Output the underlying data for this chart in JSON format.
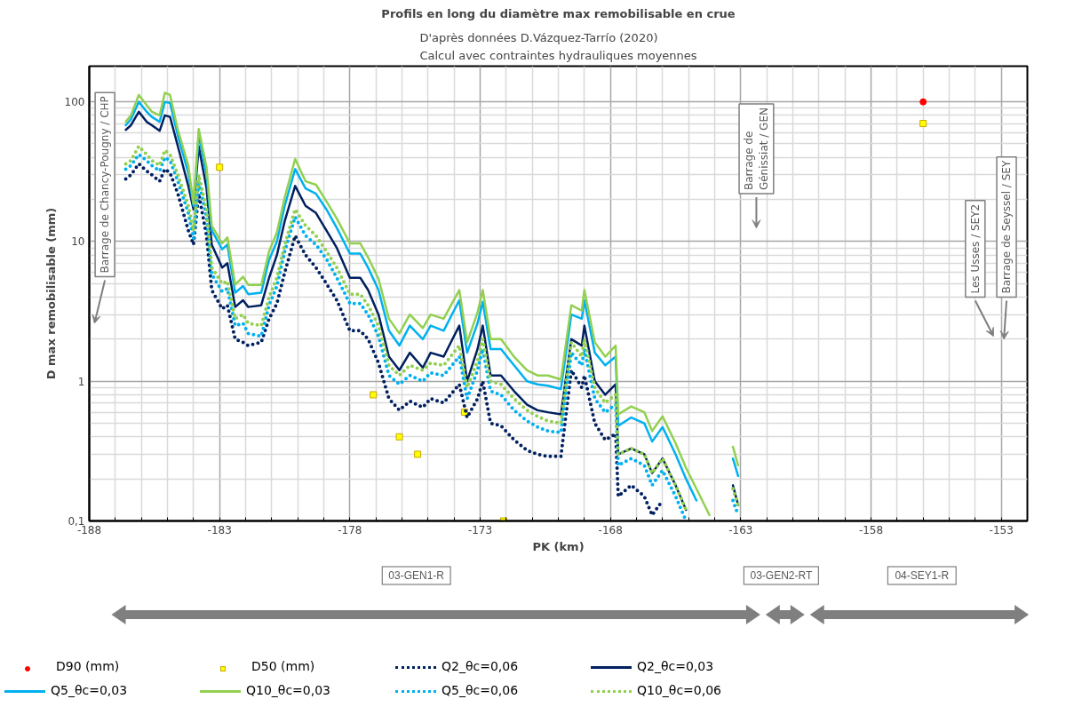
{
  "chart_data": {
    "type": "line",
    "title": "Profils en long du diamètre max remobilisable en crue",
    "subtitle": "D'après données D.Vázquez-Tarrío (2020)\nCalcul avec contraintes hydrauliques moyennes",
    "xlabel": "PK (km)",
    "ylabel": "D max remobilisable (mm)",
    "log": "y",
    "grid": true,
    "legend": "bottom",
    "xlim": [
      -188,
      -152
    ],
    "ylim": [
      0.1,
      180
    ],
    "xticks": [
      -188,
      {
        "value": -187,
        "label": null
      },
      {
        "value": -186,
        "label": null
      },
      {
        "value": -185,
        "label": null
      },
      {
        "value": -184,
        "label": null
      },
      -183,
      {
        "value": -182,
        "label": null
      },
      {
        "value": -181,
        "label": null
      },
      {
        "value": -180,
        "label": null
      },
      {
        "value": -179,
        "label": null
      },
      -178,
      {
        "value": -177,
        "label": null
      },
      {
        "value": -176,
        "label": null
      },
      {
        "value": -175,
        "label": null
      },
      {
        "value": -174,
        "label": null
      },
      -173,
      {
        "value": -172,
        "label": null
      },
      {
        "value": -171,
        "label": null
      },
      {
        "value": -170,
        "label": null
      },
      {
        "value": -169,
        "label": null
      },
      -168,
      {
        "value": -167,
        "label": null
      },
      {
        "value": -166,
        "label": null
      },
      {
        "value": -165,
        "label": null
      },
      {
        "value": -164,
        "label": null
      },
      -163,
      {
        "value": -162,
        "label": null
      },
      {
        "value": -161,
        "label": null
      },
      {
        "value": -160,
        "label": null
      },
      {
        "value": -159,
        "label": null
      },
      -158,
      {
        "value": -157,
        "label": null
      },
      {
        "value": -156,
        "label": null
      },
      {
        "value": -155,
        "label": null
      },
      {
        "value": -154,
        "label": null
      },
      -153
    ],
    "yticks": [
      {
        "value": 0.1,
        "label": "0,1"
      },
      {
        "value": 0.2,
        "label": null
      },
      {
        "value": 0.3,
        "label": null
      },
      {
        "value": 0.4,
        "label": null
      },
      {
        "value": 0.5,
        "label": null
      },
      {
        "value": 0.6,
        "label": null
      },
      {
        "value": 0.7,
        "label": null
      },
      {
        "value": 0.8,
        "label": null
      },
      {
        "value": 0.9,
        "label": null
      },
      1,
      {
        "value": 2,
        "label": null
      },
      {
        "value": 3,
        "label": null
      },
      {
        "value": 4,
        "label": null
      },
      {
        "value": 5,
        "label": null
      },
      {
        "value": 6,
        "label": null
      },
      {
        "value": 7,
        "label": null
      },
      {
        "value": 8,
        "label": null
      },
      {
        "value": 9,
        "label": null
      },
      10,
      {
        "value": 20,
        "label": null
      },
      {
        "value": 30,
        "label": null
      },
      {
        "value": 40,
        "label": null
      },
      {
        "value": 50,
        "label": null
      },
      {
        "value": 60,
        "label": null
      },
      {
        "value": 70,
        "label": null
      },
      {
        "value": 80,
        "label": null
      },
      {
        "value": 90,
        "label": null
      },
      100
    ],
    "x": [
      -186.6,
      -186.4,
      -186.1,
      -185.8,
      -185.6,
      -185.3,
      -185.1,
      -184.9,
      -184.6,
      -184.2,
      -184.0,
      -183.8,
      -183.5,
      -183.3,
      -182.9,
      -182.7,
      -182.4,
      -182.1,
      -181.9,
      -181.4,
      -181.1,
      -180.8,
      -180.5,
      -180.1,
      -179.7,
      -179.3,
      -178.9,
      -178.5,
      -178.0,
      -177.6,
      -177.3,
      -176.9,
      -176.5,
      -176.1,
      -175.7,
      -175.2,
      -174.9,
      -174.4,
      -173.8,
      -173.5,
      -173.1,
      -172.9,
      -172.6,
      -172.2,
      -171.7,
      -171.2,
      -170.8,
      -170.4,
      -169.9,
      -169.5,
      -169.1,
      -169.0,
      -168.6,
      -168.2,
      -167.8,
      -167.7,
      -167.2,
      -166.7,
      -166.4,
      -166.0,
      -165.5,
      -165.1,
      -164.7,
      -164.2,
      -163.8,
      -163.3,
      -163.1
    ],
    "series": [
      {
        "name": "D90 (mm)",
        "type": "scatter",
        "marker": "circle",
        "color": "#ff0000",
        "x": [
          -156.0
        ],
        "values": [
          100
        ]
      },
      {
        "name": "D50 (mm)",
        "type": "scatter",
        "marker": "square",
        "color": "#ffff00",
        "x": [
          -183.0,
          -177.1,
          -176.1,
          -175.4,
          -173.6,
          -172.1,
          -156.0
        ],
        "values": [
          34,
          0.8,
          0.4,
          0.3,
          0.6,
          0.1,
          70
        ]
      },
      {
        "name": "Q2_θc=0,06",
        "line_style": "dotted",
        "color": "#002060",
        "values": [
          28,
          30,
          36,
          32,
          30,
          27,
          33,
          31,
          22,
          12,
          9.5,
          22,
          11,
          4.5,
          3.3,
          3.5,
          2.0,
          1.9,
          1.8,
          1.9,
          2.8,
          3.6,
          6,
          11,
          8,
          6.5,
          5,
          3.8,
          2.3,
          2.3,
          2,
          1.35,
          0.75,
          0.62,
          0.72,
          0.65,
          0.75,
          0.7,
          0.95,
          0.55,
          0.75,
          1.0,
          0.5,
          0.48,
          0.38,
          0.32,
          0.3,
          0.29,
          0.29,
          1.2,
          0.9,
          1.1,
          0.5,
          0.38,
          0.42,
          0.15,
          0.18,
          0.15,
          0.11,
          0.14,
          null,
          null,
          null,
          null,
          null,
          null,
          null
        ]
      },
      {
        "name": "Q2_θc=0,03",
        "line_style": "solid",
        "color": "#002060",
        "values": [
          63,
          68,
          85,
          72,
          68,
          62,
          80,
          78,
          48,
          25,
          17,
          48,
          24,
          9.5,
          6.5,
          7,
          3.4,
          3.8,
          3.4,
          3.5,
          5.5,
          8,
          14,
          25,
          18,
          16,
          12,
          9,
          5.5,
          5.5,
          4.5,
          3,
          1.5,
          1.2,
          1.6,
          1.25,
          1.6,
          1.5,
          2.5,
          1.0,
          1.7,
          2.5,
          1.1,
          1.1,
          0.85,
          0.68,
          0.62,
          0.6,
          0.58,
          2.0,
          1.8,
          2.5,
          1.0,
          0.8,
          0.95,
          0.3,
          0.33,
          0.3,
          0.22,
          0.28,
          0.18,
          0.12,
          null,
          null,
          null,
          0.18,
          0.13
        ]
      },
      {
        "name": "Q5_θc=0,03",
        "line_style": "solid",
        "color": "#00b0f0",
        "values": [
          68,
          75,
          100,
          85,
          78,
          72,
          100,
          98,
          57,
          31,
          18,
          58,
          30,
          12,
          8.8,
          9.5,
          4.3,
          4.8,
          4.2,
          4.3,
          7.4,
          10,
          18,
          33,
          24,
          22,
          17,
          12.5,
          8.2,
          8.2,
          6.5,
          4.5,
          2.3,
          1.8,
          2.5,
          2,
          2.5,
          2.3,
          3.8,
          1.6,
          2.6,
          3.7,
          1.7,
          1.7,
          1.3,
          1.0,
          0.95,
          0.93,
          0.88,
          3,
          2.8,
          3.8,
          1.6,
          1.3,
          1.5,
          0.48,
          0.55,
          0.5,
          0.37,
          0.47,
          0.3,
          0.2,
          0.14,
          null,
          null,
          0.28,
          0.21
        ]
      },
      {
        "name": "Q10_θc=0,03",
        "line_style": "solid",
        "color": "#92d050",
        "values": [
          72,
          80,
          112,
          95,
          85,
          80,
          116,
          112,
          63,
          35,
          18.6,
          64,
          34,
          13,
          9.7,
          10.7,
          4.9,
          5.6,
          4.9,
          4.9,
          8.5,
          11.6,
          20.7,
          39,
          27,
          25.5,
          19.4,
          14.6,
          9.7,
          9.7,
          7.7,
          5.4,
          2.8,
          2.2,
          3,
          2.4,
          3,
          2.8,
          4.5,
          1.9,
          3.1,
          4.5,
          2,
          2,
          1.5,
          1.2,
          1.1,
          1.1,
          1.03,
          3.5,
          3.2,
          4.5,
          1.9,
          1.5,
          1.8,
          0.58,
          0.66,
          0.6,
          0.44,
          0.56,
          0.36,
          0.24,
          0.17,
          0.11,
          null,
          0.34,
          0.25
        ]
      },
      {
        "name": "Q5_θc=0,06",
        "line_style": "dotted",
        "color": "#00b0f0",
        "values": [
          33,
          35,
          42,
          38,
          35,
          32,
          40,
          38,
          27,
          16,
          10.5,
          27,
          15,
          5.8,
          4.4,
          4.6,
          2.5,
          2.6,
          2.2,
          2.1,
          3.5,
          4.8,
          8.5,
          15,
          11,
          9.5,
          7.5,
          5.5,
          3.6,
          3.6,
          3,
          2.1,
          1.1,
          0.95,
          1.1,
          1.0,
          1.15,
          1.1,
          1.5,
          0.75,
          1.2,
          1.7,
          0.85,
          0.8,
          0.62,
          0.52,
          0.47,
          0.44,
          0.43,
          1.6,
          1.3,
          1.7,
          0.75,
          0.6,
          0.68,
          0.25,
          0.28,
          0.25,
          0.18,
          0.23,
          0.15,
          0.1,
          null,
          null,
          null,
          0.14,
          0.11
        ]
      },
      {
        "name": "Q10_θc=0,06",
        "line_style": "dotted",
        "color": "#92d050",
        "values": [
          36,
          38,
          48,
          42,
          38,
          35,
          45,
          42,
          30,
          18,
          12,
          30,
          17,
          6.5,
          5,
          5.2,
          2.8,
          3,
          2.6,
          2.5,
          4,
          5.5,
          9.5,
          17,
          13,
          11,
          8.5,
          6.5,
          4.2,
          4.2,
          3.5,
          2.5,
          1.3,
          1.1,
          1.3,
          1.2,
          1.35,
          1.3,
          1.8,
          0.9,
          1.4,
          2,
          1.0,
          0.95,
          0.75,
          0.62,
          0.56,
          0.52,
          0.5,
          1.9,
          1.5,
          2,
          0.9,
          0.7,
          0.8,
          0.3,
          0.33,
          0.3,
          0.22,
          0.28,
          0.18,
          0.12,
          null,
          null,
          null,
          0.17,
          0.13
        ]
      }
    ],
    "annotations": [
      "Barrage de Chancy-Pougny / CHP",
      "Barrage de Génissiat / GEN",
      "Les Usses / SEY2",
      "Barrage de Seyssel / SEY",
      "03-GEN1-R",
      "03-GEN2-RT",
      "04-SEY1-R"
    ]
  }
}
